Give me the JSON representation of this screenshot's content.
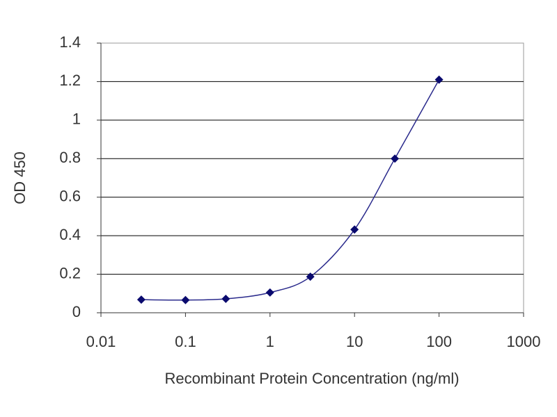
{
  "chart_data": {
    "type": "line",
    "x_label": "Recombinant Protein Concentration (ng/ml)",
    "y_label": "OD 450",
    "x": [
      0.03,
      0.1,
      0.3,
      1,
      3,
      10,
      30,
      100
    ],
    "values": [
      0.068,
      0.066,
      0.072,
      0.105,
      0.187,
      0.432,
      0.8,
      1.21
    ],
    "color": "#2a2a8c",
    "xscale": "log",
    "xlim": [
      0.01,
      1000
    ],
    "xticks": [
      0.01,
      0.1,
      1,
      10,
      100,
      1000
    ],
    "ylim": [
      0,
      1.4
    ],
    "yticks": [
      0,
      0.2,
      0.4,
      0.6,
      0.8,
      1,
      1.2,
      1.4
    ],
    "grid": true
  }
}
